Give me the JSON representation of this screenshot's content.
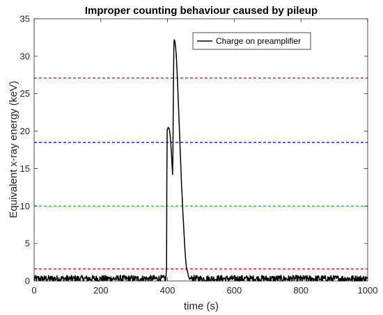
{
  "chart_data": {
    "type": "line",
    "title": "Improper counting behaviour caused by pileup",
    "xlabel": "time (s)",
    "ylabel": "Equivalent x-ray energy (keV)",
    "xlim": [
      0,
      1000
    ],
    "ylim": [
      0,
      35
    ],
    "xticks": [
      0,
      200,
      400,
      600,
      800,
      1000
    ],
    "yticks": [
      0,
      5,
      10,
      15,
      20,
      25,
      30,
      35
    ],
    "grid": false,
    "legend_position": "top-right",
    "series": [
      {
        "name": "Charge on preamplifier",
        "color": "#000000",
        "style": "solid",
        "points": [
          [
            0,
            0.3
          ],
          [
            395,
            0.3
          ],
          [
            397,
            2
          ],
          [
            398,
            14
          ],
          [
            399,
            20.2
          ],
          [
            402,
            20.5
          ],
          [
            405,
            20.3
          ],
          [
            408,
            19.5
          ],
          [
            411,
            17.5
          ],
          [
            414,
            15.2
          ],
          [
            415,
            14.2
          ],
          [
            416,
            16.5
          ],
          [
            417,
            22
          ],
          [
            418,
            27.5
          ],
          [
            419,
            31.2
          ],
          [
            420,
            32.2
          ],
          [
            422,
            32
          ],
          [
            424,
            31.3
          ],
          [
            426,
            30.2
          ],
          [
            428,
            28.5
          ],
          [
            430,
            26.5
          ],
          [
            432,
            24.3
          ],
          [
            434,
            22
          ],
          [
            436,
            19.8
          ],
          [
            438,
            17.3
          ],
          [
            440,
            15
          ],
          [
            442,
            12.8
          ],
          [
            444,
            11
          ],
          [
            446,
            9.2
          ],
          [
            448,
            7.5
          ],
          [
            450,
            5.8
          ],
          [
            452,
            4.3
          ],
          [
            454,
            3
          ],
          [
            456,
            2
          ],
          [
            458,
            1.5
          ],
          [
            460,
            1.2
          ],
          [
            463,
            0.6
          ],
          [
            466,
            0.2
          ],
          [
            470,
            0.3
          ],
          [
            1000,
            0.3
          ]
        ],
        "noise_amplitude": 0.45
      }
    ],
    "threshold_lines": [
      {
        "y": 27.1,
        "color": "#990099",
        "style": "dashed"
      },
      {
        "y": 18.5,
        "color": "#0000ff",
        "style": "dashed"
      },
      {
        "y": 10.0,
        "color": "#00cc00",
        "style": "dashed"
      },
      {
        "y": 1.6,
        "color": "#ff0000",
        "style": "dashed"
      }
    ]
  }
}
